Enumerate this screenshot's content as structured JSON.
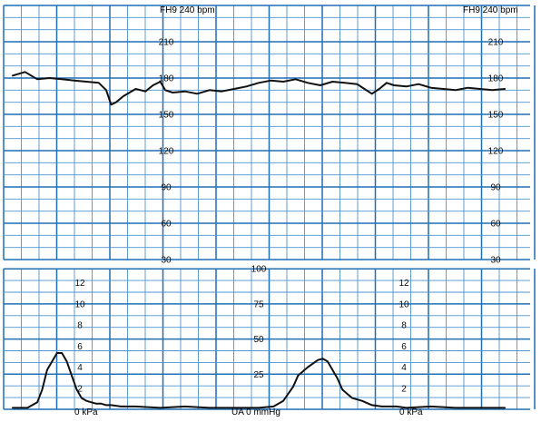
{
  "colors": {
    "grid_major": "#1f6fb4",
    "grid_minor": "#4d93cf",
    "trace": "#111111",
    "text": "#0c0c0c",
    "background": "#ffffff"
  },
  "chart_data": [
    {
      "type": "line",
      "header_left": "FH9 240 bpm",
      "header_right": "FH9 240 bpm",
      "ylim": [
        30,
        240
      ],
      "yticks": [
        210,
        180,
        150,
        120,
        90,
        60,
        30
      ],
      "ytick_labels": [
        "210",
        "180",
        "150",
        "120",
        "90",
        "60",
        "30"
      ],
      "tick_label_columns": [
        "mid",
        "right"
      ],
      "grid": true,
      "series": [
        {
          "x": [
            0,
            0.025,
            0.05,
            0.075,
            0.1,
            0.125,
            0.15,
            0.175,
            0.19,
            0.2,
            0.21,
            0.225,
            0.25,
            0.27,
            0.285,
            0.3,
            0.31,
            0.325,
            0.35,
            0.375,
            0.4,
            0.425,
            0.45,
            0.475,
            0.5,
            0.525,
            0.55,
            0.575,
            0.6,
            0.625,
            0.65,
            0.675,
            0.7,
            0.715,
            0.73,
            0.745,
            0.76,
            0.775,
            0.8,
            0.825,
            0.85,
            0.875,
            0.9,
            0.925,
            0.95,
            0.975,
            1.0
          ],
          "values": [
            182,
            185,
            179,
            180,
            179,
            178,
            177,
            176,
            170,
            158,
            160,
            165,
            171,
            169,
            174,
            177,
            170,
            168,
            169,
            167,
            170,
            169,
            171,
            173,
            176,
            178,
            177,
            179,
            176,
            174,
            177,
            176,
            175,
            171,
            167,
            171,
            176,
            174,
            173,
            175,
            172,
            171,
            170,
            172,
            171,
            170,
            171
          ]
        }
      ]
    },
    {
      "type": "line",
      "ylim": [
        0,
        100
      ],
      "yticks": [
        100,
        75,
        50,
        25
      ],
      "ytick_labels": [
        "100",
        "75",
        "50",
        "25"
      ],
      "kpa_ticks": [
        12,
        10,
        8,
        6,
        4,
        2
      ],
      "kpa_tick_labels": [
        "12",
        "10",
        "8",
        "6",
        "4",
        "2"
      ],
      "footer_left": "0 kPa",
      "footer_mid": "UA  0 mmHg",
      "footer_right": "0 kPa",
      "grid": true,
      "series": [
        {
          "x": [
            0,
            0.03,
            0.05,
            0.06,
            0.07,
            0.08,
            0.09,
            0.1,
            0.11,
            0.12,
            0.13,
            0.14,
            0.15,
            0.16,
            0.17,
            0.18,
            0.19,
            0.2,
            0.22,
            0.25,
            0.3,
            0.35,
            0.4,
            0.45,
            0.5,
            0.53,
            0.55,
            0.57,
            0.58,
            0.6,
            0.62,
            0.63,
            0.64,
            0.65,
            0.66,
            0.67,
            0.69,
            0.71,
            0.73,
            0.75,
            0.78,
            0.8,
            0.85,
            0.9,
            0.95,
            1.0
          ],
          "values": [
            1,
            1,
            5,
            14,
            28,
            34,
            40,
            40,
            34,
            24,
            14,
            8,
            6,
            5,
            4,
            4,
            3,
            3,
            2,
            2,
            1,
            2,
            1,
            1,
            1,
            2,
            6,
            16,
            24,
            30,
            35,
            36,
            34,
            28,
            22,
            14,
            8,
            6,
            3,
            2,
            2,
            1,
            2,
            1,
            1,
            1
          ]
        }
      ]
    }
  ]
}
